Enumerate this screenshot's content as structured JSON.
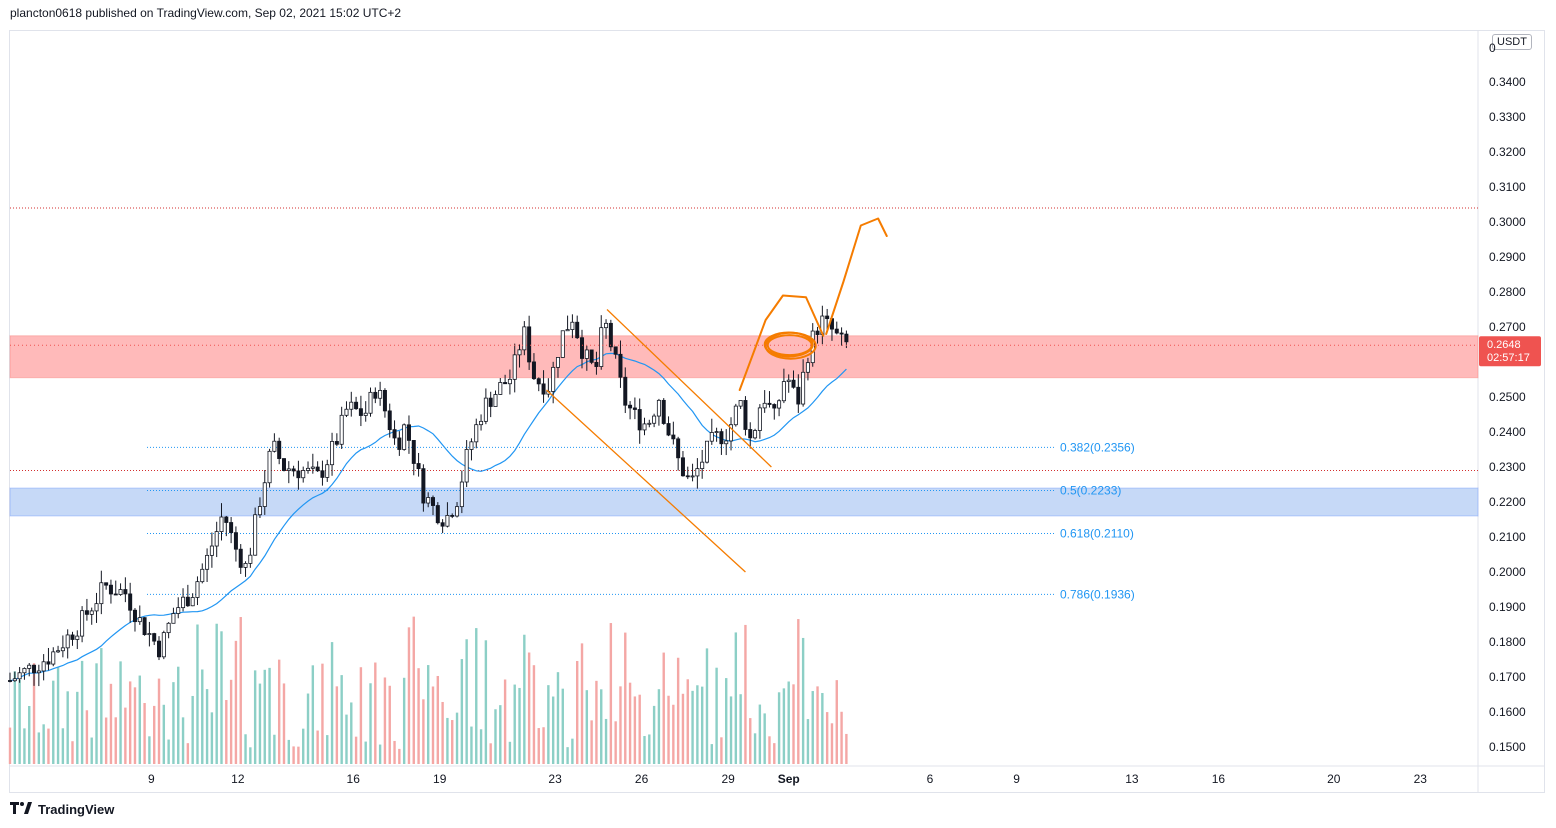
{
  "header": {
    "publisher_line": "plancton0618 published on TradingView.com, Sep 02, 2021 15:02 UTC+2"
  },
  "footer": {
    "brand": "TradingView"
  },
  "axis": {
    "currency": "USDT",
    "top_clipped_label": "0"
  },
  "colors": {
    "up": "#26a69a",
    "down": "#ef5350",
    "ma": "#2196f3",
    "resistance_zone": "#ffbaba",
    "support_zone": "#c6d9f7",
    "drawing": "#f57c00",
    "fib": "#2196f3",
    "dotted_red": "#d32f2f"
  },
  "chart_data": {
    "type": "candlestick",
    "title": "plancton0618 published on TradingView.com, Sep 02, 2021 15:02 UTC+2",
    "ylim": [
      0.145,
      0.355
    ],
    "y_ticks": [
      "0.3400",
      "0.3300",
      "0.3200",
      "0.3100",
      "0.3000",
      "0.2900",
      "0.2800",
      "0.2700",
      "0.2500",
      "0.2400",
      "0.2300",
      "0.2200",
      "0.2100",
      "0.2000",
      "0.1900",
      "0.1800",
      "0.1700",
      "0.1600",
      "0.1500"
    ],
    "x_ticks": [
      {
        "label": "9",
        "day": 9.0
      },
      {
        "label": "12",
        "day": 12.0
      },
      {
        "label": "16",
        "day": 16.0
      },
      {
        "label": "19",
        "day": 19.0
      },
      {
        "label": "23",
        "day": 23.0
      },
      {
        "label": "26",
        "day": 26.0
      },
      {
        "label": "29",
        "day": 29.0
      },
      {
        "label": "Sep",
        "day": 31.1
      },
      {
        "label": "6",
        "day": 36.0
      },
      {
        "label": "9",
        "day": 39.0
      },
      {
        "label": "13",
        "day": 43.0
      },
      {
        "label": "16",
        "day": 46.0
      },
      {
        "label": "20",
        "day": 50.0
      },
      {
        "label": "23",
        "day": 53.0
      }
    ],
    "x_range_days": [
      4.1,
      55.0
    ],
    "last_price": {
      "value": "0.2648",
      "countdown": "02:57:17"
    },
    "resistance_zone": [
      0.2555,
      0.2675
    ],
    "support_zone": [
      0.216,
      0.224
    ],
    "dotted_levels": [
      0.304,
      0.229
    ],
    "fib_levels": [
      {
        "label": "0.382(0.2356)",
        "value": 0.2356
      },
      {
        "label": "0.5(0.2233)",
        "value": 0.2233
      },
      {
        "label": "0.618(0.2110)",
        "value": 0.211
      },
      {
        "label": "0.786(0.1936)",
        "value": 0.1936
      }
    ],
    "anchors": [
      [
        4.1,
        0.169
      ],
      [
        5.5,
        0.176
      ],
      [
        6.5,
        0.185
      ],
      [
        7.4,
        0.196
      ],
      [
        8.1,
        0.194
      ],
      [
        8.6,
        0.186
      ],
      [
        9.3,
        0.178
      ],
      [
        9.8,
        0.189
      ],
      [
        10.4,
        0.194
      ],
      [
        10.9,
        0.203
      ],
      [
        11.5,
        0.217
      ],
      [
        11.9,
        0.207
      ],
      [
        12.3,
        0.201
      ],
      [
        12.8,
        0.222
      ],
      [
        13.2,
        0.236
      ],
      [
        13.6,
        0.23
      ],
      [
        14.2,
        0.229
      ],
      [
        14.8,
        0.227
      ],
      [
        15.4,
        0.237
      ],
      [
        15.8,
        0.247
      ],
      [
        16.4,
        0.245
      ],
      [
        16.8,
        0.253
      ],
      [
        17.2,
        0.244
      ],
      [
        17.5,
        0.236
      ],
      [
        17.8,
        0.242
      ],
      [
        18.1,
        0.233
      ],
      [
        18.4,
        0.223
      ],
      [
        18.8,
        0.218
      ],
      [
        19.2,
        0.215
      ],
      [
        19.6,
        0.221
      ],
      [
        20.0,
        0.235
      ],
      [
        20.5,
        0.247
      ],
      [
        21.0,
        0.252
      ],
      [
        21.5,
        0.256
      ],
      [
        21.9,
        0.269
      ],
      [
        22.3,
        0.255
      ],
      [
        22.8,
        0.253
      ],
      [
        23.2,
        0.267
      ],
      [
        23.6,
        0.273
      ],
      [
        24.0,
        0.262
      ],
      [
        24.4,
        0.257
      ],
      [
        24.7,
        0.272
      ],
      [
        25.0,
        0.263
      ],
      [
        25.4,
        0.249
      ],
      [
        25.8,
        0.244
      ],
      [
        26.2,
        0.242
      ],
      [
        26.6,
        0.25
      ],
      [
        26.9,
        0.241
      ],
      [
        27.3,
        0.231
      ],
      [
        27.7,
        0.225
      ],
      [
        28.1,
        0.232
      ],
      [
        28.5,
        0.238
      ],
      [
        29.0,
        0.24
      ],
      [
        29.4,
        0.249
      ],
      [
        29.8,
        0.237
      ],
      [
        30.2,
        0.251
      ],
      [
        30.6,
        0.244
      ],
      [
        31.0,
        0.257
      ],
      [
        31.4,
        0.248
      ],
      [
        31.8,
        0.264
      ],
      [
        32.2,
        0.272
      ],
      [
        32.6,
        0.269
      ],
      [
        32.9,
        0.2655
      ],
      [
        33.2,
        0.2648
      ]
    ],
    "volume_max": 46,
    "drawings": [
      {
        "type": "descending-channel-upper",
        "from": [
          24.8,
          0.275
        ],
        "to": [
          30.5,
          0.23
        ]
      },
      {
        "type": "descending-channel-lower",
        "from": [
          22.7,
          0.252
        ],
        "to": [
          29.6,
          0.2
        ]
      },
      {
        "type": "projected-path",
        "points": [
          [
            29.4,
            0.252
          ],
          [
            30.3,
            0.272
          ],
          [
            30.9,
            0.279
          ],
          [
            31.7,
            0.2785
          ],
          [
            32.3,
            0.2675
          ]
        ]
      },
      {
        "type": "projected-path-2",
        "points": [
          [
            32.4,
            0.268
          ],
          [
            33.0,
            0.283
          ],
          [
            33.6,
            0.299
          ],
          [
            34.2,
            0.301
          ],
          [
            34.5,
            0.296
          ]
        ]
      },
      {
        "type": "circle-highlight",
        "center": [
          31.1,
          0.265
        ]
      }
    ]
  }
}
